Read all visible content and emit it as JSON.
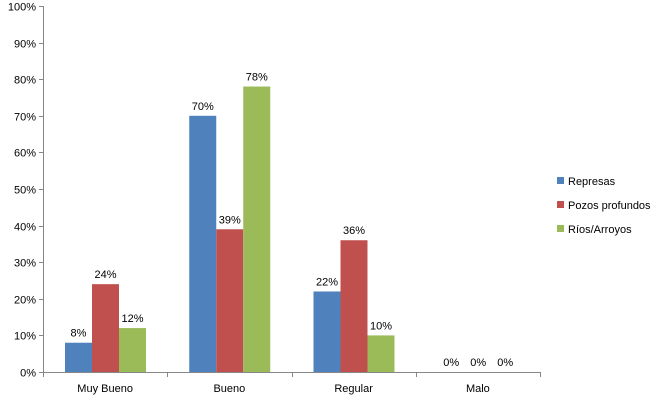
{
  "chart_data": {
    "type": "bar",
    "categories": [
      "Muy Bueno",
      "Bueno",
      "Regular",
      "Malo"
    ],
    "series": [
      {
        "name": "Represas",
        "color": "#4F81BD",
        "values": [
          8,
          70,
          22,
          0
        ]
      },
      {
        "name": "Pozos profundos",
        "color": "#C0504D",
        "values": [
          24,
          39,
          36,
          0
        ]
      },
      {
        "name": "Ríos/Arroyos",
        "color": "#9BBB59",
        "values": [
          12,
          78,
          10,
          0
        ]
      }
    ],
    "data_labels": [
      [
        "8%",
        "70%",
        "22%",
        "0%"
      ],
      [
        "24%",
        "39%",
        "36%",
        "0%"
      ],
      [
        "12%",
        "78%",
        "10%",
        "0%"
      ]
    ],
    "y_ticks": [
      "0%",
      "10%",
      "20%",
      "30%",
      "40%",
      "50%",
      "60%",
      "70%",
      "80%",
      "90%",
      "100%"
    ],
    "ylim": [
      0,
      100
    ],
    "grid": false,
    "legend_position": "right",
    "title": "",
    "xlabel": "",
    "ylabel": ""
  }
}
